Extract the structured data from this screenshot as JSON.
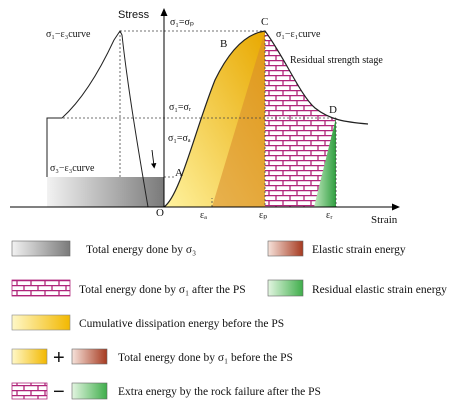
{
  "axes": {
    "y_label": "Stress",
    "x_label": "Strain",
    "origin": "O"
  },
  "curve_labels": {
    "left_curve": "σ₁−ε₃curve",
    "right_curve": "σ₁−ε₁curve",
    "lower_left": "σ₃−ε₃curve",
    "residual": "Residual strength stage",
    "sigma_peak": "σ₁=σₚ",
    "sigma_r": "σ₁=σᵣ",
    "sigma_a": "σ₁=σₐ"
  },
  "points": {
    "A": "A",
    "B": "B",
    "C": "C",
    "D": "D"
  },
  "x_ticks": {
    "e_a": "εₐ",
    "e_p": "εₚ",
    "e_r": "εᵣ"
  },
  "legend": [
    {
      "key": "grey",
      "label": "Total energy done by σ₃"
    },
    {
      "key": "red",
      "label": "Elastic strain energy"
    },
    {
      "key": "brick",
      "label": "Total energy done by σ₁ after the PS"
    },
    {
      "key": "green",
      "label": "Residual elastic strain energy"
    },
    {
      "key": "yellow",
      "label": "Cumulative dissipation energy before the PS"
    },
    {
      "key": "yellow+red",
      "label": "Total energy done by σ₁ before the PS"
    },
    {
      "key": "brick-green",
      "label": "Extra energy by the rock failure after the PS"
    }
  ],
  "symbols": {
    "plus": "+",
    "minus": "−"
  },
  "colors": {
    "yellow": "#f5c300",
    "red": "#b5482c",
    "brick": "#b0257a",
    "green": "#55b55a",
    "grey": "#8c8c8c"
  }
}
